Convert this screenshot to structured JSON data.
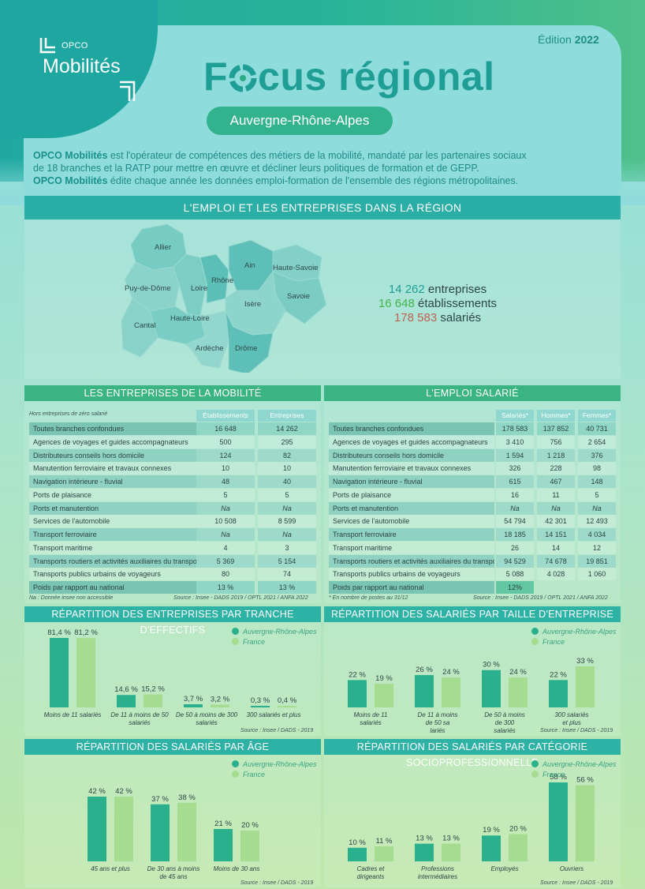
{
  "header": {
    "logo_small": "OPCO",
    "logo_big": "Mobilités",
    "edition_label": "Édition",
    "edition_year": "2022",
    "title_f": "F",
    "title_rest": "cus régional",
    "region": "Auvergne-Rhône-Alpes"
  },
  "intro": {
    "line1_bold": "OPCO Mobilités",
    "line1_rest": " est l'opérateur de compétences des métiers de la mobilité, mandaté par les partenaires sociaux",
    "line2": "de 18 branches et la RATP pour mettre en œuvre et décliner leurs politiques de formation et de GEPP.",
    "line3_bold": "OPCO Mobilités",
    "line3_rest": " édite chaque année les données emploi-formation de l'ensemble des régions métropolitaines."
  },
  "section_emploi": {
    "title": "L'EMPLOI ET LES ENTREPRISES DANS LA RÉGION",
    "departments": [
      "Allier",
      "Puy-de-Dôme",
      "Loire",
      "Rhône",
      "Ain",
      "Haute-Savoie",
      "Savoie",
      "Isère",
      "Cantal",
      "Haute-Loire",
      "Ardèche",
      "Drôme"
    ],
    "stats": [
      {
        "value": "14 262",
        "label": " entreprises"
      },
      {
        "value": "16 648",
        "label": " établissements"
      },
      {
        "value": "178 583",
        "label": " salariés"
      }
    ]
  },
  "table_entreprises": {
    "title": "LES ENTREPRISES DE LA MOBILITÉ",
    "subtitle": "Hors entreprises de zéro salarié",
    "columns": [
      "Établissements",
      "Entreprises"
    ],
    "rows": [
      {
        "label": "Toutes branches confondues",
        "values": [
          "16 648",
          "14 262"
        ]
      },
      {
        "label": "Agences de voyages et guides accompagnateurs",
        "values": [
          "500",
          "295"
        ]
      },
      {
        "label": "Distributeurs conseils hors domicile",
        "values": [
          "124",
          "82"
        ]
      },
      {
        "label": "Manutention ferroviaire et travaux connexes",
        "values": [
          "10",
          "10"
        ]
      },
      {
        "label": "Navigation intérieure - fluvial",
        "values": [
          "48",
          "40"
        ]
      },
      {
        "label": "Ports de plaisance",
        "values": [
          "5",
          "5"
        ]
      },
      {
        "label": "Ports et manutention",
        "values": [
          "Na",
          "Na"
        ]
      },
      {
        "label": "Services de l'automobile",
        "values": [
          "10 508",
          "8 599"
        ]
      },
      {
        "label": "Transport ferroviaire",
        "values": [
          "Na",
          "Na"
        ]
      },
      {
        "label": "Transport maritime",
        "values": [
          "4",
          "3"
        ]
      },
      {
        "label": "Transports routiers et activités auxiliaires du transport",
        "values": [
          "5 369",
          "5 154"
        ]
      },
      {
        "label": "Transports publics urbains de voyageurs",
        "values": [
          "80",
          "74"
        ]
      },
      {
        "label": "Poids par rapport au national",
        "values": [
          "13 %",
          "13 %"
        ]
      }
    ],
    "note_left": "Na : Donnée insee non accessible",
    "note_right": "Source : Insee - DADS 2019 / OPTL 2021 / ANFA 2022"
  },
  "table_emploi": {
    "title": "L'EMPLOI SALARIÉ",
    "columns": [
      "Salariés*",
      "Hommes*",
      "Femmes*"
    ],
    "rows": [
      {
        "label": "Toutes branches confondues",
        "values": [
          "178 583",
          "137 852",
          "40 731"
        ]
      },
      {
        "label": "Agences de voyages et guides accompagnateurs",
        "values": [
          "3 410",
          "756",
          "2 654"
        ]
      },
      {
        "label": "Distributeurs conseils hors domicile",
        "values": [
          "1 594",
          "1 218",
          "376"
        ]
      },
      {
        "label": "Manutention ferroviaire et travaux connexes",
        "values": [
          "326",
          "228",
          "98"
        ]
      },
      {
        "label": "Navigation intérieure - fluvial",
        "values": [
          "615",
          "467",
          "148"
        ]
      },
      {
        "label": "Ports de plaisance",
        "values": [
          "16",
          "11",
          "5"
        ]
      },
      {
        "label": "Ports et manutention",
        "values": [
          "Na",
          "Na",
          "Na"
        ]
      },
      {
        "label": "Services de l'automobile",
        "values": [
          "54 794",
          "42 301",
          "12 493"
        ]
      },
      {
        "label": "Transport ferroviaire",
        "values": [
          "18 185",
          "14 151",
          "4 034"
        ]
      },
      {
        "label": "Transport maritime",
        "values": [
          "26",
          "14",
          "12"
        ]
      },
      {
        "label": "Transports routiers et activités auxiliaires du transport",
        "values": [
          "94 529",
          "74 678",
          "19 851"
        ]
      },
      {
        "label": "Transports publics urbains de voyageurs",
        "values": [
          "5 088",
          "4 028",
          "1 060"
        ]
      },
      {
        "label": "Poids par rapport au national",
        "values": [
          "12%",
          "",
          ""
        ]
      }
    ],
    "note_left": "* En nombre de postes au 31/12",
    "note_right": "Source : Insee - DADS 2019 / OPTL 2021 / ANFA 2022"
  },
  "legend": {
    "region": "Auvergne-Rhône-Alpes",
    "france": "France",
    "region_color": "#2bb08e",
    "france_color": "#a6dc90"
  },
  "chart_data": [
    {
      "type": "bar",
      "title": "RÉPARTITION DES ENTREPRISES PAR TRANCHE D'EFFECTIFS",
      "categories": [
        "Moins de 11 salariés",
        "De 11 à moins de 50 salariés",
        "De 50 à moins de 300 salariés",
        "300 salariés et plus"
      ],
      "series": [
        {
          "name": "Auvergne-Rhône-Alpes",
          "values": [
            81.4,
            14.6,
            3.7,
            0.3
          ],
          "labels": [
            "81,4 %",
            "14,6 %",
            "3,7 %",
            "0,3 %"
          ]
        },
        {
          "name": "France",
          "values": [
            81.2,
            15.2,
            3.2,
            0.4
          ],
          "labels": [
            "81,2 %",
            "15,2 %",
            "3,2 %",
            "0,4 %"
          ]
        }
      ],
      "source": "Source : Insee / DADS - 2019"
    },
    {
      "type": "bar",
      "title": "RÉPARTITION DES SALARIÉS PAR TAILLE D'ENTREPRISE",
      "categories": [
        "Moins de 11 salariés",
        "De 11 à moins de 50 sa lariés",
        "De 50 à moins de 300 salariés",
        "300 salariés et plus"
      ],
      "series": [
        {
          "name": "Auvergne-Rhône-Alpes",
          "values": [
            22,
            26,
            30,
            22
          ],
          "labels": [
            "22 %",
            "26 %",
            "30 %",
            "22 %"
          ]
        },
        {
          "name": "France",
          "values": [
            19,
            24,
            24,
            33
          ],
          "labels": [
            "19 %",
            "24 %",
            "24 %",
            "33 %"
          ]
        }
      ],
      "source": "Source : Insee / DADS - 2019"
    },
    {
      "type": "bar",
      "title": "RÉPARTITION DES SALARIÉS PAR ÂGE",
      "categories": [
        "45 ans et plus",
        "De 30 ans à moins de 45 ans",
        "Moins de 30 ans"
      ],
      "series": [
        {
          "name": "Auvergne-Rhône-Alpes",
          "values": [
            42,
            37,
            21
          ],
          "labels": [
            "42 %",
            "37 %",
            "21 %"
          ]
        },
        {
          "name": "France",
          "values": [
            42,
            38,
            20
          ],
          "labels": [
            "42 %",
            "38 %",
            "20 %"
          ]
        }
      ],
      "source": "Source : Insee / DADS - 2019"
    },
    {
      "type": "bar",
      "title": "RÉPARTITION DES SALARIÉS PAR CATÉGORIE SOCIOPROFESSIONNELLE",
      "categories": [
        "Cadres et dirigeants",
        "Professions intermédiaires",
        "Employés",
        "Ouvriers"
      ],
      "series": [
        {
          "name": "Auvergne-Rhône-Alpes",
          "values": [
            10,
            13,
            19,
            58
          ],
          "labels": [
            "10 %",
            "13 %",
            "19 %",
            "58 %"
          ]
        },
        {
          "name": "France",
          "values": [
            11,
            13,
            20,
            56
          ],
          "labels": [
            "11 %",
            "13 %",
            "20 %",
            "56 %"
          ]
        }
      ],
      "source": "Source : Insee / DADS - 2019"
    }
  ]
}
